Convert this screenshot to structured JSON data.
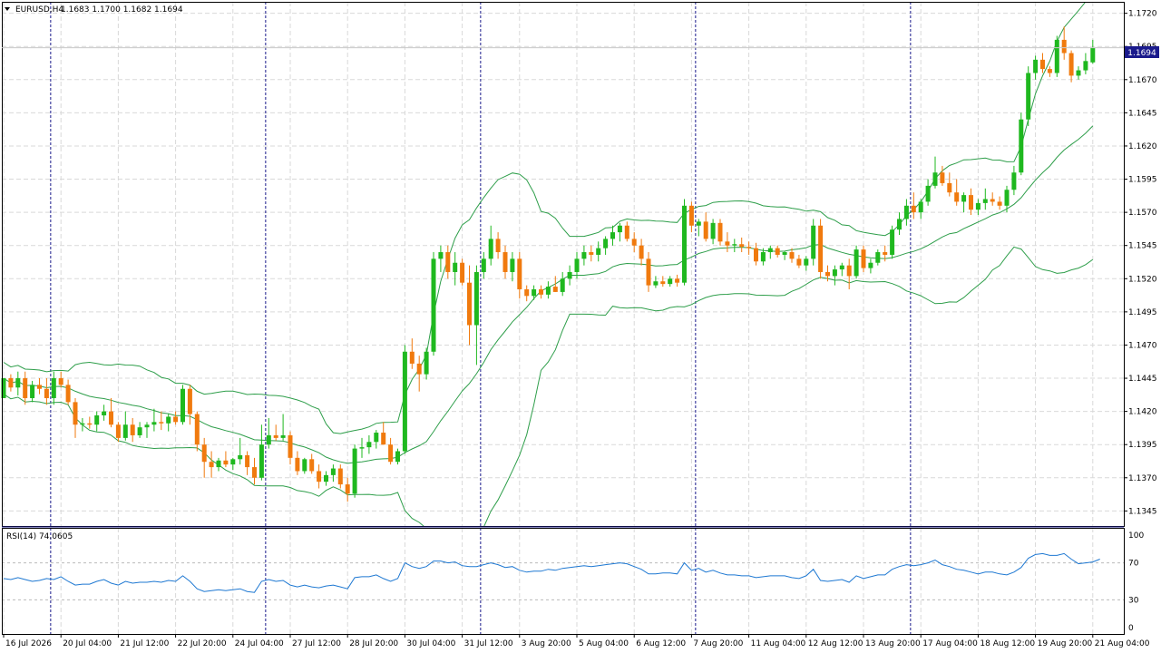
{
  "header": {
    "symbol_label": "EURUSD,H4",
    "ohlc": "1.1683 1.1700 1.1682 1.1694",
    "dropdown_icon": "triangle-down-icon"
  },
  "rsi": {
    "label": "RSI(14) 74.0605",
    "levels": [
      "100",
      "70",
      "30",
      "0"
    ],
    "color": "#1e78d2"
  },
  "colors": {
    "bull": "#1fb81f",
    "bear": "#f07a0e",
    "bands": "#2e9e4a",
    "grid": "#d9d9d9",
    "price_tag_bg": "#1a1a8c"
  },
  "chart_data": {
    "type": "candlestick",
    "symbol": "EURUSD",
    "timeframe": "H4",
    "ylim": [
      1.1335,
      1.173
    ],
    "y_ticks": [
      "1.1720",
      "1.1695",
      "1.1670",
      "1.1645",
      "1.1620",
      "1.1595",
      "1.1570",
      "1.1545",
      "1.1520",
      "1.1495",
      "1.1470",
      "1.1445",
      "1.1420",
      "1.1395",
      "1.1370",
      "1.1345"
    ],
    "current_price": "1.1694",
    "x_labels": [
      "16 Jul 2026",
      "20 Jul 04:00",
      "21 Jul 12:00",
      "22 Jul 20:00",
      "24 Jul 04:00",
      "27 Jul 12:00",
      "28 Jul 20:00",
      "30 Jul 04:00",
      "31 Jul 12:00",
      "3 Aug 20:00",
      "5 Aug 04:00",
      "6 Aug 12:00",
      "7 Aug 20:00",
      "11 Aug 04:00",
      "12 Aug 12:00",
      "13 Aug 20:00",
      "17 Aug 04:00",
      "18 Aug 12:00",
      "19 Aug 20:00",
      "21 Aug 04:00"
    ],
    "candles": [
      [
        1.143,
        1.1445,
        1.143,
        1.1445
      ],
      [
        1.1445,
        1.1448,
        1.1435,
        1.1438
      ],
      [
        1.1438,
        1.145,
        1.1432,
        1.1445
      ],
      [
        1.1445,
        1.145,
        1.1425,
        1.143
      ],
      [
        1.143,
        1.1443,
        1.1427,
        1.144
      ],
      [
        1.144,
        1.1445,
        1.1433,
        1.1437
      ],
      [
        1.1437,
        1.1445,
        1.1425,
        1.143
      ],
      [
        1.143,
        1.145,
        1.1425,
        1.1445
      ],
      [
        1.1445,
        1.145,
        1.1438,
        1.144
      ],
      [
        1.144,
        1.1444,
        1.1425,
        1.1427
      ],
      [
        1.1427,
        1.143,
        1.14,
        1.141
      ],
      [
        1.141,
        1.1415,
        1.1405,
        1.1411
      ],
      [
        1.1411,
        1.1416,
        1.1407,
        1.141
      ],
      [
        1.141,
        1.142,
        1.1405,
        1.1417
      ],
      [
        1.1417,
        1.1425,
        1.1413,
        1.142
      ],
      [
        1.142,
        1.143,
        1.1408,
        1.141
      ],
      [
        1.141,
        1.1412,
        1.1397,
        1.14
      ],
      [
        1.14,
        1.142,
        1.1398,
        1.141
      ],
      [
        1.141,
        1.1415,
        1.1397,
        1.1402
      ],
      [
        1.1402,
        1.1412,
        1.14,
        1.1408
      ],
      [
        1.1408,
        1.1412,
        1.14,
        1.141
      ],
      [
        1.141,
        1.1422,
        1.1405,
        1.1412
      ],
      [
        1.1412,
        1.142,
        1.1406,
        1.1411
      ],
      [
        1.1411,
        1.1418,
        1.1405,
        1.1416
      ],
      [
        1.1416,
        1.142,
        1.141,
        1.1412
      ],
      [
        1.1412,
        1.144,
        1.141,
        1.1437
      ],
      [
        1.1437,
        1.144,
        1.141,
        1.1418
      ],
      [
        1.1418,
        1.142,
        1.139,
        1.1395
      ],
      [
        1.1395,
        1.14,
        1.137,
        1.1382
      ],
      [
        1.1382,
        1.139,
        1.137,
        1.1378
      ],
      [
        1.1378,
        1.1385,
        1.1375,
        1.1383
      ],
      [
        1.1383,
        1.139,
        1.1378,
        1.138
      ],
      [
        1.138,
        1.1385,
        1.1376,
        1.1384
      ],
      [
        1.1384,
        1.14,
        1.138,
        1.1387
      ],
      [
        1.1387,
        1.139,
        1.1372,
        1.1378
      ],
      [
        1.1378,
        1.1385,
        1.1365,
        1.137
      ],
      [
        1.137,
        1.141,
        1.1368,
        1.1395
      ],
      [
        1.1395,
        1.1415,
        1.1392,
        1.1402
      ],
      [
        1.1402,
        1.141,
        1.1398,
        1.14
      ],
      [
        1.14,
        1.1418,
        1.1398,
        1.1402
      ],
      [
        1.1402,
        1.1405,
        1.138,
        1.1385
      ],
      [
        1.1385,
        1.139,
        1.1372,
        1.1375
      ],
      [
        1.1375,
        1.1385,
        1.1373,
        1.1384
      ],
      [
        1.1384,
        1.1388,
        1.1373,
        1.1375
      ],
      [
        1.1375,
        1.138,
        1.1362,
        1.1367
      ],
      [
        1.1367,
        1.1375,
        1.1364,
        1.1372
      ],
      [
        1.1372,
        1.138,
        1.1367,
        1.1377
      ],
      [
        1.1377,
        1.138,
        1.1362,
        1.1365
      ],
      [
        1.1365,
        1.137,
        1.1352,
        1.1358
      ],
      [
        1.1358,
        1.1395,
        1.1355,
        1.1392
      ],
      [
        1.1392,
        1.14,
        1.1385,
        1.1393
      ],
      [
        1.1393,
        1.1402,
        1.1388,
        1.1397
      ],
      [
        1.1397,
        1.1406,
        1.1392,
        1.1404
      ],
      [
        1.1404,
        1.1412,
        1.1395,
        1.1395
      ],
      [
        1.1395,
        1.14,
        1.138,
        1.1382
      ],
      [
        1.1382,
        1.1392,
        1.138,
        1.139
      ],
      [
        1.139,
        1.147,
        1.1388,
        1.1465
      ],
      [
        1.1465,
        1.1475,
        1.1452,
        1.1456
      ],
      [
        1.1456,
        1.1462,
        1.1435,
        1.1448
      ],
      [
        1.1448,
        1.1468,
        1.1444,
        1.1465
      ],
      [
        1.1465,
        1.154,
        1.1462,
        1.1535
      ],
      [
        1.1535,
        1.1545,
        1.1525,
        1.154
      ],
      [
        1.154,
        1.1545,
        1.152,
        1.1525
      ],
      [
        1.1525,
        1.154,
        1.1515,
        1.1532
      ],
      [
        1.1532,
        1.1535,
        1.1515,
        1.1517
      ],
      [
        1.1517,
        1.153,
        1.147,
        1.1485
      ],
      [
        1.1485,
        1.153,
        1.1455,
        1.1525
      ],
      [
        1.1525,
        1.154,
        1.152,
        1.1535
      ],
      [
        1.1535,
        1.156,
        1.153,
        1.155
      ],
      [
        1.155,
        1.1555,
        1.1535,
        1.154
      ],
      [
        1.154,
        1.1545,
        1.152,
        1.1525
      ],
      [
        1.1525,
        1.154,
        1.1518,
        1.1535
      ],
      [
        1.1535,
        1.154,
        1.1505,
        1.1512
      ],
      [
        1.1512,
        1.1515,
        1.1503,
        1.1507
      ],
      [
        1.1507,
        1.1515,
        1.1504,
        1.1512
      ],
      [
        1.1512,
        1.1515,
        1.1505,
        1.1508
      ],
      [
        1.1508,
        1.1518,
        1.1505,
        1.1514
      ],
      [
        1.1514,
        1.1522,
        1.151,
        1.151
      ],
      [
        1.151,
        1.1525,
        1.1507,
        1.152
      ],
      [
        1.152,
        1.153,
        1.1515,
        1.1525
      ],
      [
        1.1525,
        1.154,
        1.152,
        1.1535
      ],
      [
        1.1535,
        1.1545,
        1.153,
        1.154
      ],
      [
        1.154,
        1.1545,
        1.1533,
        1.1538
      ],
      [
        1.1538,
        1.1548,
        1.1533,
        1.1543
      ],
      [
        1.1543,
        1.1552,
        1.1538,
        1.155
      ],
      [
        1.155,
        1.156,
        1.1545,
        1.1555
      ],
      [
        1.1555,
        1.1562,
        1.1548,
        1.156
      ],
      [
        1.156,
        1.1563,
        1.1548,
        1.155
      ],
      [
        1.155,
        1.1555,
        1.154,
        1.1545
      ],
      [
        1.1545,
        1.155,
        1.153,
        1.1535
      ],
      [
        1.1535,
        1.154,
        1.151,
        1.1515
      ],
      [
        1.1515,
        1.1522,
        1.1513,
        1.1518
      ],
      [
        1.1518,
        1.1522,
        1.1514,
        1.1516
      ],
      [
        1.1516,
        1.1522,
        1.1514,
        1.152
      ],
      [
        1.152,
        1.1523,
        1.1514,
        1.1517
      ],
      [
        1.1517,
        1.158,
        1.1515,
        1.1575
      ],
      [
        1.1575,
        1.1578,
        1.1555,
        1.156
      ],
      [
        1.156,
        1.1565,
        1.1552,
        1.1563
      ],
      [
        1.1563,
        1.157,
        1.1548,
        1.155
      ],
      [
        1.155,
        1.1565,
        1.1546,
        1.1562
      ],
      [
        1.1562,
        1.1565,
        1.1545,
        1.1548
      ],
      [
        1.1548,
        1.1555,
        1.154,
        1.1545
      ],
      [
        1.1545,
        1.155,
        1.154,
        1.1546
      ],
      [
        1.1546,
        1.1551,
        1.154,
        1.1544
      ],
      [
        1.1544,
        1.1548,
        1.1538,
        1.1543
      ],
      [
        1.1543,
        1.1547,
        1.153,
        1.1533
      ],
      [
        1.1533,
        1.1543,
        1.153,
        1.154
      ],
      [
        1.154,
        1.1545,
        1.1535,
        1.1543
      ],
      [
        1.1543,
        1.1545,
        1.1536,
        1.1538
      ],
      [
        1.1538,
        1.1541,
        1.1534,
        1.154
      ],
      [
        1.154,
        1.1543,
        1.1532,
        1.1535
      ],
      [
        1.1535,
        1.1538,
        1.1528,
        1.153
      ],
      [
        1.153,
        1.1537,
        1.1526,
        1.1535
      ],
      [
        1.1535,
        1.1565,
        1.153,
        1.156
      ],
      [
        1.156,
        1.1565,
        1.152,
        1.1525
      ],
      [
        1.1525,
        1.153,
        1.1518,
        1.1522
      ],
      [
        1.1522,
        1.153,
        1.1515,
        1.1527
      ],
      [
        1.1527,
        1.1532,
        1.1522,
        1.153
      ],
      [
        1.153,
        1.1535,
        1.1512,
        1.1522
      ],
      [
        1.1522,
        1.1545,
        1.152,
        1.1542
      ],
      [
        1.1542,
        1.1545,
        1.1525,
        1.1528
      ],
      [
        1.1528,
        1.1535,
        1.1524,
        1.1532
      ],
      [
        1.1532,
        1.1542,
        1.153,
        1.154
      ],
      [
        1.154,
        1.1545,
        1.1533,
        1.1538
      ],
      [
        1.1538,
        1.156,
        1.1535,
        1.1557
      ],
      [
        1.1557,
        1.157,
        1.1553,
        1.1565
      ],
      [
        1.1565,
        1.158,
        1.156,
        1.1575
      ],
      [
        1.1575,
        1.1585,
        1.1565,
        1.157
      ],
      [
        1.157,
        1.158,
        1.1565,
        1.1578
      ],
      [
        1.1578,
        1.1595,
        1.1575,
        1.159
      ],
      [
        1.159,
        1.1612,
        1.1588,
        1.16
      ],
      [
        1.16,
        1.1605,
        1.159,
        1.1592
      ],
      [
        1.1592,
        1.16,
        1.1582,
        1.1585
      ],
      [
        1.1585,
        1.1595,
        1.1575,
        1.1578
      ],
      [
        1.1578,
        1.1585,
        1.157,
        1.1583
      ],
      [
        1.1583,
        1.1588,
        1.1568,
        1.1572
      ],
      [
        1.1572,
        1.158,
        1.1568,
        1.1577
      ],
      [
        1.1577,
        1.1588,
        1.1572,
        1.158
      ],
      [
        1.158,
        1.1585,
        1.1575,
        1.1578
      ],
      [
        1.1578,
        1.1582,
        1.1572,
        1.1575
      ],
      [
        1.1575,
        1.159,
        1.157,
        1.1587
      ],
      [
        1.1587,
        1.1605,
        1.1583,
        1.16
      ],
      [
        1.16,
        1.1645,
        1.1598,
        1.164
      ],
      [
        1.164,
        1.168,
        1.1635,
        1.1675
      ],
      [
        1.1675,
        1.1688,
        1.167,
        1.1685
      ],
      [
        1.1685,
        1.169,
        1.1675,
        1.1678
      ],
      [
        1.1678,
        1.168,
        1.1672,
        1.1675
      ],
      [
        1.1675,
        1.1703,
        1.1672,
        1.17
      ],
      [
        1.17,
        1.171,
        1.1685,
        1.169
      ],
      [
        1.169,
        1.1692,
        1.1668,
        1.1673
      ],
      [
        1.1673,
        1.168,
        1.167,
        1.1677
      ],
      [
        1.1677,
        1.169,
        1.1674,
        1.1684
      ],
      [
        1.1683,
        1.17,
        1.1682,
        1.1694
      ]
    ],
    "rsi_values": [
      53,
      52,
      54,
      52,
      50,
      51,
      53,
      52,
      55,
      50,
      46,
      47,
      47,
      50,
      52,
      48,
      46,
      50,
      48,
      49,
      49,
      50,
      49,
      51,
      50,
      56,
      50,
      42,
      39,
      40,
      41,
      40,
      41,
      42,
      39,
      38,
      50,
      52,
      50,
      51,
      46,
      44,
      46,
      44,
      43,
      45,
      46,
      44,
      42,
      54,
      55,
      55,
      57,
      53,
      50,
      53,
      70,
      66,
      64,
      66,
      72,
      72,
      70,
      71,
      67,
      66,
      66,
      68,
      70,
      68,
      65,
      66,
      62,
      60,
      61,
      61,
      63,
      62,
      64,
      65,
      66,
      67,
      66,
      67,
      68,
      69,
      70,
      69,
      66,
      63,
      58,
      58,
      59,
      59,
      58,
      70,
      62,
      64,
      60,
      62,
      59,
      57,
      57,
      56,
      56,
      54,
      55,
      56,
      56,
      56,
      54,
      53,
      56,
      63,
      51,
      50,
      51,
      52,
      49,
      56,
      53,
      55,
      57,
      57,
      63,
      66,
      68,
      67,
      68,
      70,
      73,
      68,
      66,
      63,
      62,
      60,
      58,
      60,
      60,
      58,
      57,
      60,
      65,
      75,
      79,
      80,
      78,
      78,
      80,
      74,
      69,
      70,
      71,
      74
    ],
    "x_label_positions": [
      0,
      8,
      16,
      24,
      32,
      40,
      48,
      56,
      64,
      72,
      80,
      88,
      96,
      104,
      112,
      120,
      128,
      136,
      144,
      152
    ],
    "separator_candles": [
      7,
      37,
      67,
      97,
      127
    ],
    "rsi_ylim": [
      0,
      100
    ],
    "rsi_levels": [
      70,
      30
    ]
  }
}
